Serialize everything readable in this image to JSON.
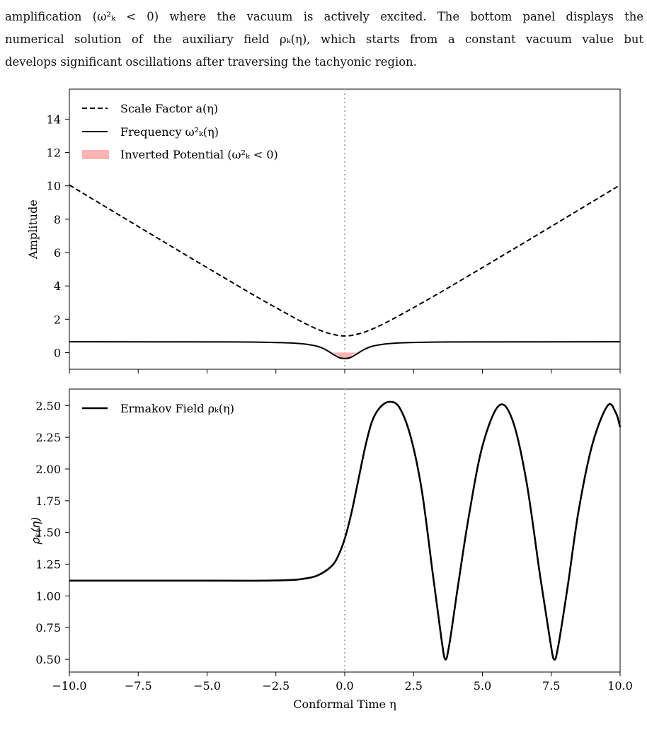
{
  "caption": {
    "line1": "amplification (ω²ₖ < 0) where the vacuum is actively excited. The bottom panel displays the",
    "line2": "numerical solution of the auxiliary field ρₖ(η), which starts from a constant vacuum value but",
    "line3": "develops significant oscillations after traversing the tachyonic region."
  },
  "figure": {
    "xlabel": "Conformal Time η",
    "top_panel": {
      "ylabel": "Amplitude",
      "legend": {
        "scale_factor": "Scale Factor a(η)",
        "frequency": "Frequency ω²ₖ(η)",
        "inverted": "Inverted Potential (ω²ₖ < 0)"
      },
      "yticks": [
        "0",
        "2",
        "4",
        "6",
        "8",
        "10",
        "12",
        "14"
      ]
    },
    "bottom_panel": {
      "ylabel": "ρₖ(η)",
      "legend": {
        "ermakov": "Ermakov Field ρₖ(η)"
      },
      "yticks": [
        "0.50",
        "0.75",
        "1.00",
        "1.25",
        "1.50",
        "1.75",
        "2.00",
        "2.25",
        "2.50"
      ]
    },
    "xticks": [
      "−10.0",
      "−7.5",
      "−5.0",
      "−2.5",
      "0.0",
      "2.5",
      "5.0",
      "7.5",
      "10.0"
    ]
  },
  "colors": {
    "line": "#000000",
    "inverted_fill": "#ffb3b3",
    "vline": "#b0b0b0"
  },
  "chart_data": [
    {
      "type": "line",
      "panel": "top",
      "xlim": [
        -10,
        10
      ],
      "ylim": [
        -1,
        15.8
      ],
      "ylabel": "Amplitude",
      "xlabel": "",
      "grid": false,
      "legend_position": "top-left",
      "series": [
        {
          "name": "Scale Factor a(η)",
          "style": "dashed",
          "x": [
            -10,
            -8,
            -6,
            -4,
            -3,
            -2,
            -1.5,
            -1,
            -0.5,
            0,
            0.5,
            1,
            1.5,
            2,
            3,
            4,
            6,
            8,
            10
          ],
          "y": [
            10.05,
            8.06,
            6.08,
            4.12,
            3.16,
            2.24,
            1.8,
            1.41,
            1.12,
            1.0,
            1.12,
            1.41,
            1.8,
            2.24,
            3.16,
            4.12,
            6.08,
            8.06,
            10.05
          ]
        },
        {
          "name": "Frequency ω²ₖ(η)",
          "style": "solid",
          "x": [
            -10,
            -4,
            -3,
            -2,
            -1.5,
            -1,
            -0.7,
            -0.4,
            -0.2,
            0,
            0.2,
            0.4,
            0.7,
            1,
            1.5,
            2,
            3,
            4,
            10
          ],
          "y": [
            0.65,
            0.64,
            0.62,
            0.58,
            0.52,
            0.38,
            0.18,
            -0.12,
            -0.3,
            -0.36,
            -0.3,
            -0.12,
            0.18,
            0.38,
            0.52,
            0.58,
            0.62,
            0.64,
            0.65
          ]
        }
      ],
      "shaded_region": {
        "name": "Inverted Potential (ω²ₖ < 0)",
        "x_range": [
          -0.5,
          0.5
        ]
      },
      "vline_x": 0
    },
    {
      "type": "line",
      "panel": "bottom",
      "xlim": [
        -10,
        10
      ],
      "ylim": [
        0.4,
        2.63
      ],
      "xlabel": "Conformal Time η",
      "ylabel": "ρₖ(η)",
      "grid": false,
      "legend_position": "top-left",
      "series": [
        {
          "name": "Ermakov Field ρₖ(η)",
          "style": "solid",
          "x": [
            -10,
            -5,
            -3,
            -2,
            -1.5,
            -1,
            -0.5,
            -0.25,
            0,
            0.25,
            0.5,
            0.75,
            1.0,
            1.3,
            1.65,
            2.0,
            2.4,
            2.8,
            3.2,
            3.5,
            3.65,
            3.8,
            4.1,
            4.5,
            5.0,
            5.6,
            6.1,
            6.6,
            7.1,
            7.45,
            7.6,
            7.75,
            8.1,
            8.5,
            9.0,
            9.55,
            9.85,
            10.0
          ],
          "y": [
            1.12,
            1.12,
            1.12,
            1.125,
            1.135,
            1.16,
            1.23,
            1.31,
            1.45,
            1.66,
            1.92,
            2.18,
            2.38,
            2.49,
            2.53,
            2.48,
            2.25,
            1.83,
            1.17,
            0.68,
            0.5,
            0.62,
            1.06,
            1.62,
            2.18,
            2.5,
            2.38,
            1.9,
            1.15,
            0.66,
            0.5,
            0.6,
            1.08,
            1.68,
            2.2,
            2.5,
            2.44,
            2.33
          ]
        }
      ],
      "vline_x": 0
    }
  ]
}
